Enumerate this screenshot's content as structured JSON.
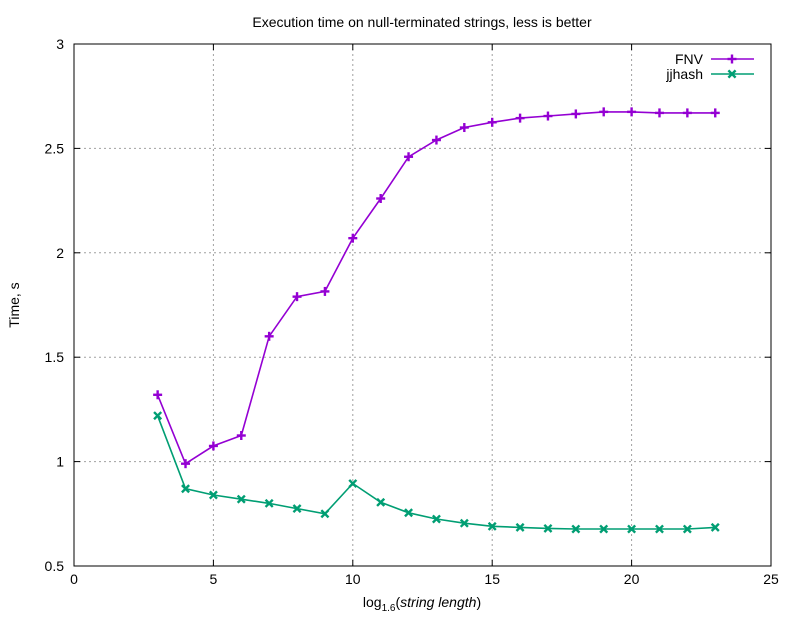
{
  "chart_data": {
    "type": "line",
    "title": "Execution time on null-terminated strings, less is better",
    "xlabel": {
      "prefix": "log",
      "subscript": "1.6",
      "open": "(",
      "italic": "string length",
      "close": ")"
    },
    "ylabel": "Time, s",
    "xlim": [
      0,
      25
    ],
    "ylim": [
      0.5,
      3
    ],
    "xticks": [
      "0",
      "5",
      "10",
      "15",
      "20",
      "25"
    ],
    "yticks": [
      "0.5",
      "1",
      "1.5",
      "2",
      "2.5",
      "3"
    ],
    "grid": true,
    "legend_position": "top-right",
    "x": [
      3,
      4,
      5,
      6,
      7,
      8,
      9,
      10,
      11,
      12,
      13,
      14,
      15,
      16,
      17,
      18,
      19,
      20,
      21,
      22,
      23
    ],
    "series": [
      {
        "name": "FNV",
        "color": "#9400d3",
        "marker": "plus",
        "values": [
          1.32,
          0.99,
          1.075,
          1.125,
          1.6,
          1.79,
          1.815,
          2.07,
          2.26,
          2.46,
          2.54,
          2.6,
          2.625,
          2.645,
          2.655,
          2.665,
          2.675,
          2.675,
          2.67,
          2.67,
          2.67
        ]
      },
      {
        "name": "jjhash",
        "color": "#009e73",
        "marker": "cross",
        "values": [
          1.22,
          0.87,
          0.84,
          0.82,
          0.8,
          0.775,
          0.75,
          0.895,
          0.805,
          0.755,
          0.725,
          0.705,
          0.69,
          0.685,
          0.68,
          0.677,
          0.677,
          0.677,
          0.677,
          0.677,
          0.685
        ]
      }
    ]
  }
}
